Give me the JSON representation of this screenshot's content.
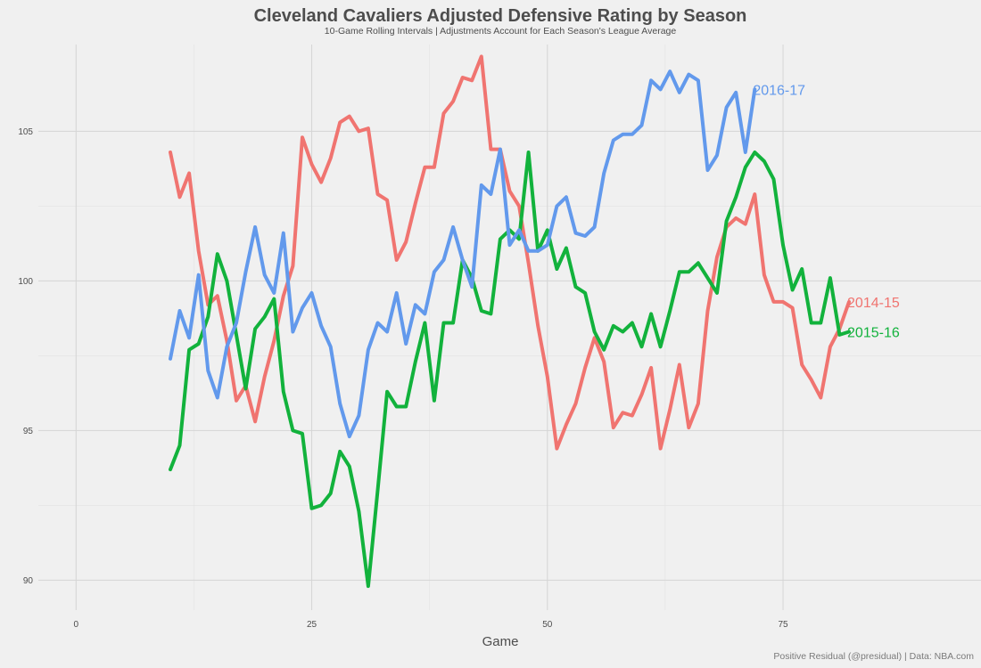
{
  "chart_data": {
    "type": "line",
    "title": "Cleveland Cavaliers Adjusted Defensive Rating by Season",
    "subtitle": "10-Game Rolling Intervals | Adjustments Account for Each Season's League Average",
    "xlabel": "Game",
    "ylabel": "",
    "caption": "Positive Residual (@presidual)  |  Data: NBA.com",
    "xlim": [
      -4,
      96
    ],
    "ylim": [
      89,
      107.9
    ],
    "x_ticks": [
      0,
      25,
      50,
      75
    ],
    "y_ticks": [
      90,
      95,
      100,
      105
    ],
    "grid": true,
    "legend": "direct labels at line ends",
    "series": [
      {
        "name": "2014-15",
        "color": "#f07470",
        "x": [
          10,
          11,
          12,
          13,
          14,
          15,
          16,
          17,
          18,
          19,
          20,
          21,
          22,
          23,
          24,
          25,
          26,
          27,
          28,
          29,
          30,
          31,
          32,
          33,
          34,
          35,
          36,
          37,
          38,
          39,
          40,
          41,
          42,
          43,
          44,
          45,
          46,
          47,
          48,
          49,
          50,
          51,
          52,
          53,
          54,
          55,
          56,
          57,
          58,
          59,
          60,
          61,
          62,
          63,
          64,
          65,
          66,
          67,
          68,
          69,
          70,
          71,
          72,
          73,
          74,
          75,
          76,
          77,
          78,
          79,
          80,
          81,
          82
        ],
        "values": [
          104.3,
          102.8,
          103.6,
          101.0,
          99.2,
          99.5,
          98.0,
          96.0,
          96.5,
          95.3,
          96.8,
          98.0,
          99.5,
          100.5,
          104.8,
          103.9,
          103.3,
          104.1,
          105.3,
          105.5,
          105.0,
          105.1,
          102.9,
          102.7,
          100.7,
          101.3,
          102.6,
          103.8,
          103.8,
          105.6,
          106.0,
          106.8,
          106.7,
          107.5,
          104.4,
          104.4,
          103.0,
          102.5,
          100.6,
          98.5,
          96.8,
          94.4,
          95.2,
          95.9,
          97.1,
          98.1,
          97.3,
          95.1,
          95.6,
          95.5,
          96.2,
          97.1,
          94.4,
          95.7,
          97.2,
          95.1,
          95.9,
          99.0,
          100.8,
          101.8,
          102.1,
          101.9,
          102.9,
          100.2,
          99.3,
          99.3,
          99.1,
          97.2,
          96.7,
          96.1,
          97.8,
          98.4,
          99.3
        ]
      },
      {
        "name": "2015-16",
        "color": "#12b23c",
        "x": [
          10,
          11,
          12,
          13,
          14,
          15,
          16,
          17,
          18,
          19,
          20,
          21,
          22,
          23,
          24,
          25,
          26,
          27,
          28,
          29,
          30,
          31,
          32,
          33,
          34,
          35,
          36,
          37,
          38,
          39,
          40,
          41,
          42,
          43,
          44,
          45,
          46,
          47,
          48,
          49,
          50,
          51,
          52,
          53,
          54,
          55,
          56,
          57,
          58,
          59,
          60,
          61,
          62,
          63,
          64,
          65,
          66,
          67,
          68,
          69,
          70,
          71,
          72,
          73,
          74,
          75,
          76,
          77,
          78,
          79,
          80,
          81,
          82
        ],
        "values": [
          93.7,
          94.5,
          97.7,
          97.9,
          98.8,
          100.9,
          100.0,
          98.2,
          96.4,
          98.4,
          98.8,
          99.4,
          96.3,
          95.0,
          94.9,
          92.4,
          92.5,
          92.9,
          94.3,
          93.8,
          92.3,
          89.8,
          93.0,
          96.3,
          95.8,
          95.8,
          97.3,
          98.6,
          96.0,
          98.6,
          98.6,
          100.7,
          100.1,
          99.0,
          98.9,
          101.4,
          101.7,
          101.4,
          104.3,
          101.0,
          101.7,
          100.4,
          101.1,
          99.8,
          99.6,
          98.3,
          97.7,
          98.5,
          98.3,
          98.6,
          97.8,
          98.9,
          97.8,
          99.0,
          100.3,
          100.3,
          100.6,
          100.1,
          99.6,
          102.0,
          102.8,
          103.8,
          104.3,
          104.0,
          103.4,
          101.2,
          99.7,
          100.4,
          98.6,
          98.6,
          100.1,
          98.2,
          98.3
        ]
      },
      {
        "name": "2016-17",
        "color": "#6299ec",
        "x": [
          10,
          11,
          12,
          13,
          14,
          15,
          16,
          17,
          18,
          19,
          20,
          21,
          22,
          23,
          24,
          25,
          26,
          27,
          28,
          29,
          30,
          31,
          32,
          33,
          34,
          35,
          36,
          37,
          38,
          39,
          40,
          41,
          42,
          43,
          44,
          45,
          46,
          47,
          48,
          49,
          50,
          51,
          52,
          53,
          54,
          55,
          56,
          57,
          58,
          59,
          60,
          61,
          62,
          63,
          64,
          65,
          66,
          67,
          68,
          69,
          70,
          71,
          72
        ],
        "values": [
          97.4,
          99.0,
          98.1,
          100.2,
          97.0,
          96.1,
          97.8,
          98.6,
          100.3,
          101.8,
          100.2,
          99.6,
          101.6,
          98.3,
          99.1,
          99.6,
          98.5,
          97.8,
          95.9,
          94.8,
          95.5,
          97.7,
          98.6,
          98.3,
          99.6,
          97.9,
          99.2,
          98.9,
          100.3,
          100.7,
          101.8,
          100.7,
          99.8,
          103.2,
          102.9,
          104.4,
          101.2,
          101.7,
          101.0,
          101.0,
          101.2,
          102.5,
          102.8,
          101.6,
          101.5,
          101.8,
          103.6,
          104.7,
          104.9,
          104.9,
          105.2,
          106.7,
          106.4,
          107.0,
          106.3,
          106.9,
          106.7,
          103.7,
          104.2,
          105.8,
          106.3,
          104.3,
          106.4
        ]
      }
    ]
  }
}
